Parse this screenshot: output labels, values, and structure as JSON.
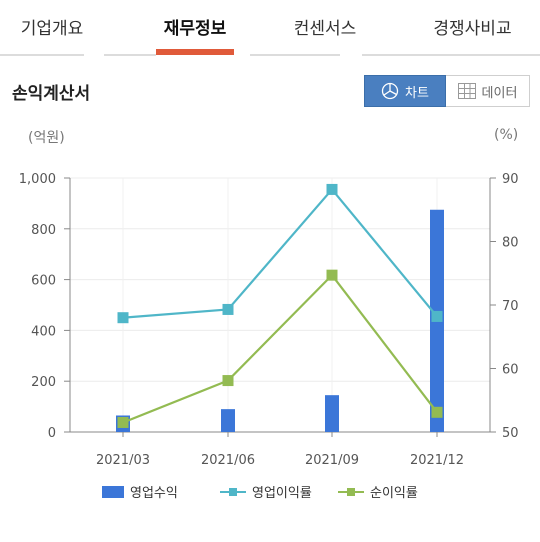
{
  "tabs": [
    {
      "label": "기업개요",
      "active": false
    },
    {
      "label": "재무정보",
      "active": true
    },
    {
      "label": "컨센서스",
      "active": false
    },
    {
      "label": "경쟁사비교",
      "active": false
    }
  ],
  "section": {
    "title": "손익계산서"
  },
  "view_toggle": {
    "chart_label": "차트",
    "data_label": "데이터",
    "selected": "chart"
  },
  "colors": {
    "accent": "#e05a3a",
    "toggle_active": "#4a7fc0"
  },
  "chart_data": {
    "type": "bar",
    "categories": [
      "2021/03",
      "2021/06",
      "2021/09",
      "2021/12"
    ],
    "left_axis": {
      "unit_label": "(억원)",
      "range": [
        0,
        1000
      ],
      "ticks": [
        "0",
        "200",
        "400",
        "600",
        "800",
        "1,000"
      ]
    },
    "right_axis": {
      "unit_label": "(%)",
      "range": [
        50,
        90
      ],
      "ticks": [
        "50",
        "60",
        "70",
        "80",
        "90"
      ]
    },
    "series": [
      {
        "name": "영업수익",
        "kind": "bar",
        "axis": "left",
        "color": "#3b76d8",
        "values": [
          65,
          90,
          145,
          875
        ]
      },
      {
        "name": "영업이익률",
        "kind": "line",
        "axis": "right",
        "color": "#4fb6c8",
        "values": [
          68,
          69.3,
          88.2,
          68.2
        ]
      },
      {
        "name": "순이익률",
        "kind": "line",
        "axis": "right",
        "color": "#93bb52",
        "values": [
          51.5,
          58.1,
          74.7,
          53.1
        ]
      }
    ],
    "grid": true,
    "legend_position": "bottom"
  }
}
